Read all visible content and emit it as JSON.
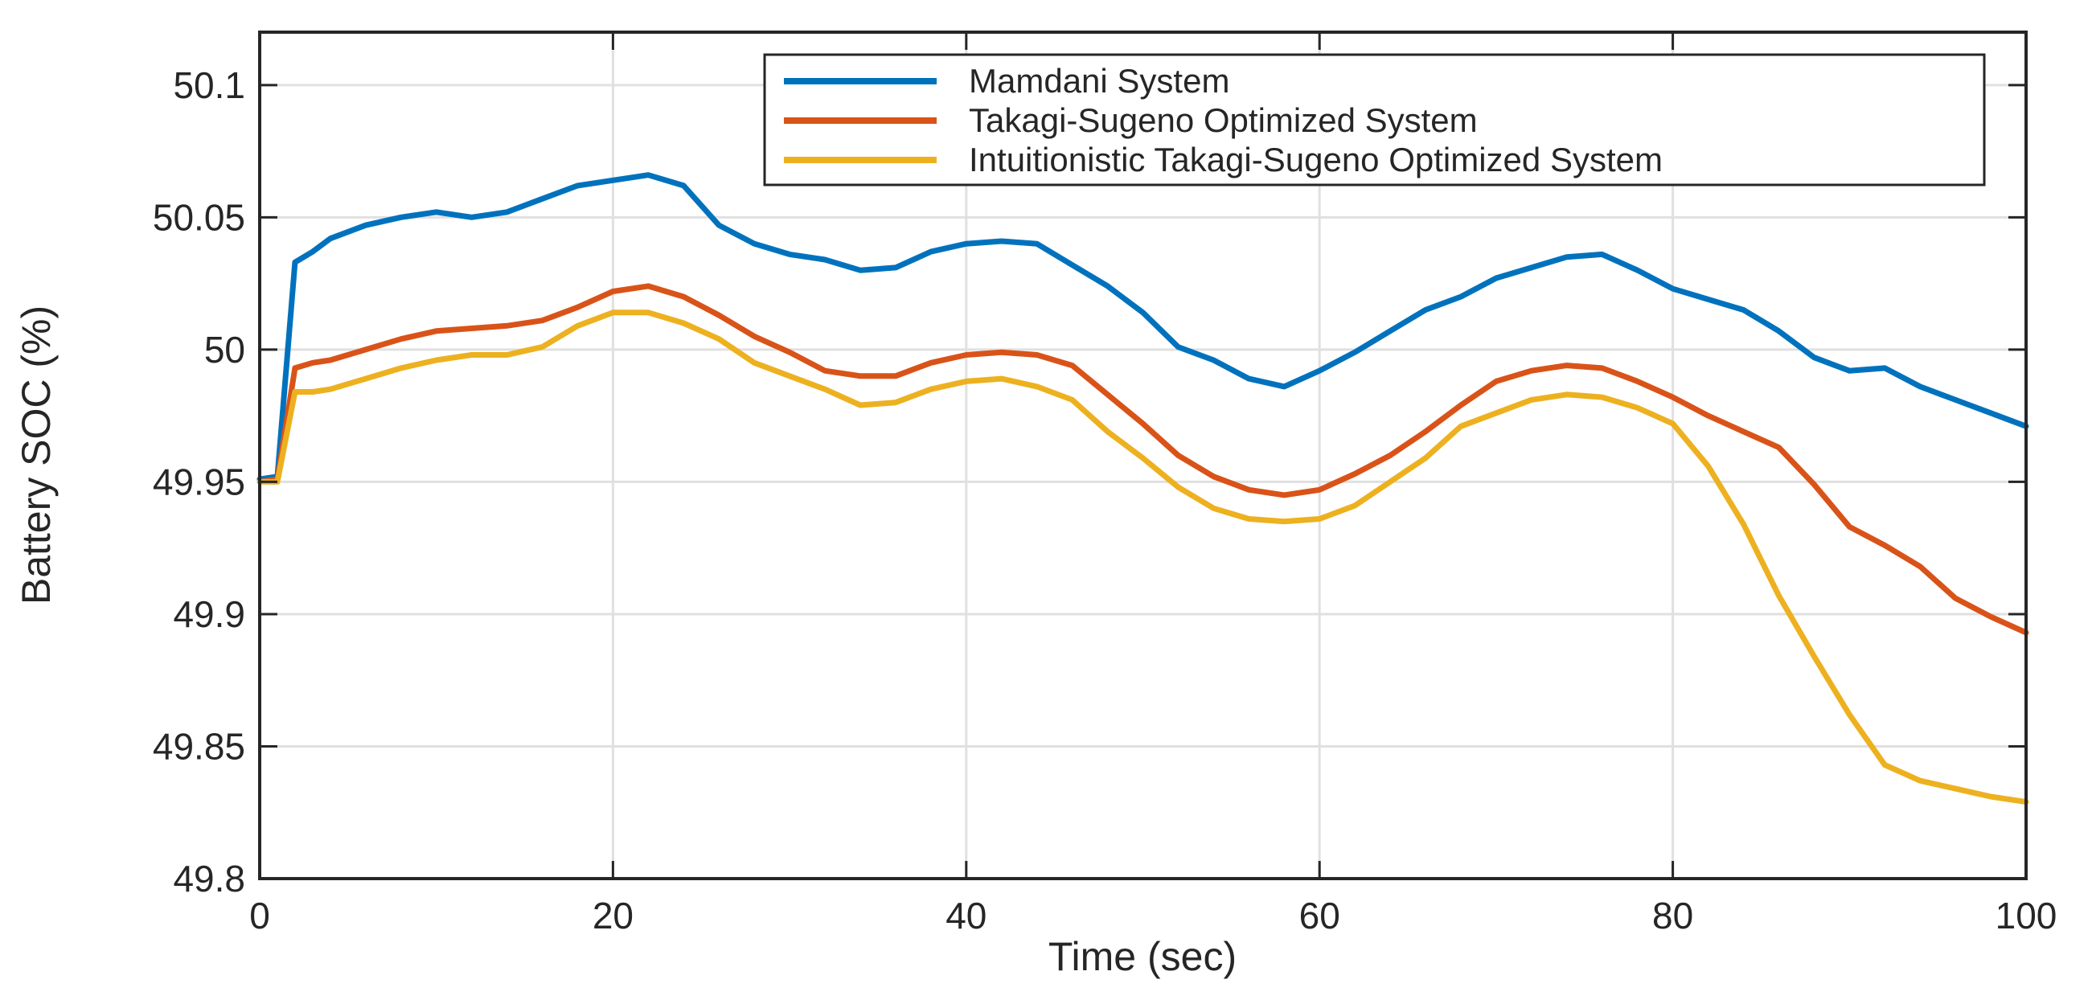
{
  "chart_data": {
    "type": "line",
    "title": "",
    "xlabel": "Time (sec)",
    "ylabel": "Battery SOC (%)",
    "xlim": [
      0,
      100
    ],
    "ylim": [
      49.8,
      50.12
    ],
    "xticks": [
      0,
      20,
      40,
      60,
      80,
      100
    ],
    "xtick_labels": [
      "0",
      "20",
      "40",
      "60",
      "80",
      "100"
    ],
    "yticks": [
      49.8,
      49.85,
      49.9,
      49.95,
      50,
      50.05,
      50.1
    ],
    "ytick_labels": [
      "49.8",
      "49.85",
      "49.9",
      "49.95",
      "50",
      "50.05",
      "50.1"
    ],
    "grid": true,
    "legend_position": "upper-left-inside",
    "x": [
      0,
      1,
      2,
      3,
      4,
      6,
      8,
      10,
      12,
      14,
      16,
      18,
      20,
      22,
      24,
      26,
      28,
      30,
      32,
      34,
      36,
      38,
      40,
      42,
      44,
      46,
      48,
      50,
      52,
      54,
      56,
      58,
      60,
      62,
      64,
      66,
      68,
      70,
      72,
      74,
      76,
      78,
      80,
      82,
      84,
      86,
      88,
      90,
      92,
      94,
      96,
      98,
      100
    ],
    "series": [
      {
        "name": "Mamdani System",
        "color": "#0072BD",
        "values": [
          49.951,
          49.952,
          50.033,
          50.037,
          50.042,
          50.047,
          50.05,
          50.052,
          50.05,
          50.052,
          50.057,
          50.062,
          50.064,
          50.066,
          50.062,
          50.047,
          50.04,
          50.036,
          50.034,
          50.03,
          50.031,
          50.037,
          50.04,
          50.041,
          50.04,
          50.032,
          50.024,
          50.014,
          50.001,
          49.996,
          49.989,
          49.986,
          49.992,
          49.999,
          50.007,
          50.015,
          50.02,
          50.027,
          50.031,
          50.035,
          50.036,
          50.03,
          50.023,
          50.019,
          50.015,
          50.007,
          49.997,
          49.992,
          49.993,
          49.986,
          49.981,
          49.976,
          49.971
        ]
      },
      {
        "name": "Takagi-Sugeno Optimized System",
        "color": "#D95319",
        "values": [
          49.95,
          49.951,
          49.993,
          49.995,
          49.996,
          50.0,
          50.004,
          50.007,
          50.008,
          50.009,
          50.011,
          50.016,
          50.022,
          50.024,
          50.02,
          50.013,
          50.005,
          49.999,
          49.992,
          49.99,
          49.99,
          49.995,
          49.998,
          49.999,
          49.998,
          49.994,
          49.983,
          49.972,
          49.96,
          49.952,
          49.947,
          49.945,
          49.947,
          49.953,
          49.96,
          49.969,
          49.979,
          49.988,
          49.992,
          49.994,
          49.993,
          49.988,
          49.982,
          49.975,
          49.969,
          49.963,
          49.949,
          49.933,
          49.926,
          49.918,
          49.906,
          49.899,
          49.893
        ]
      },
      {
        "name": "Intuitionistic Takagi-Sugeno Optimized System",
        "color": "#EDB120",
        "values": [
          49.95,
          49.95,
          49.984,
          49.984,
          49.985,
          49.989,
          49.993,
          49.996,
          49.998,
          49.998,
          50.001,
          50.009,
          50.014,
          50.014,
          50.01,
          50.004,
          49.995,
          49.99,
          49.985,
          49.979,
          49.98,
          49.985,
          49.988,
          49.989,
          49.986,
          49.981,
          49.969,
          49.959,
          49.948,
          49.94,
          49.936,
          49.935,
          49.936,
          49.941,
          49.95,
          49.959,
          49.971,
          49.976,
          49.981,
          49.983,
          49.982,
          49.978,
          49.972,
          49.956,
          49.934,
          49.907,
          49.884,
          49.862,
          49.843,
          49.837,
          49.834,
          49.831,
          49.829
        ]
      }
    ],
    "colors": {
      "grid": "#e0e0e0",
      "frame": "#262626",
      "text": "#262626",
      "background": "#ffffff"
    }
  }
}
